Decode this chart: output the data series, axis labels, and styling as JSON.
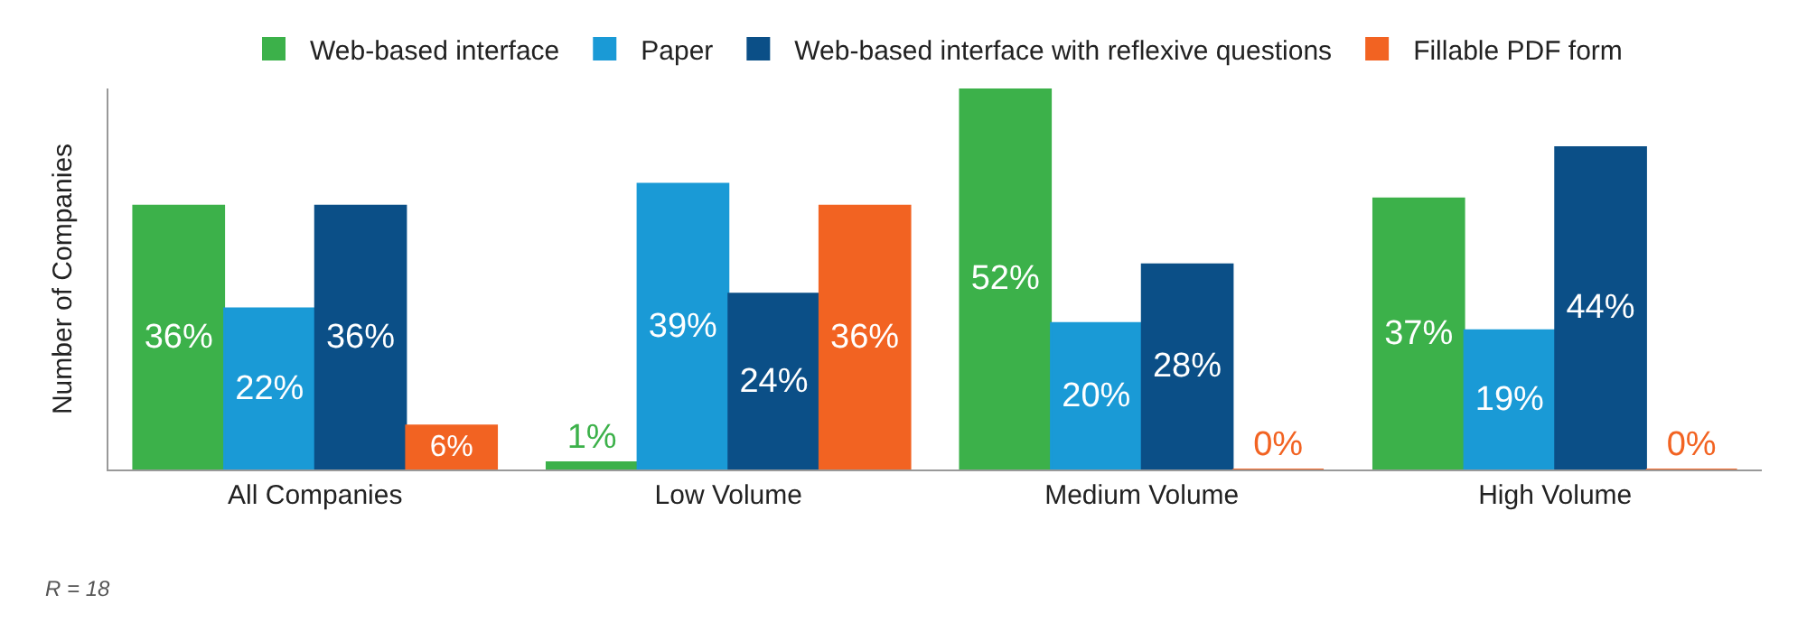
{
  "chart_data": {
    "type": "bar",
    "ylabel": "Number of Companies",
    "categories": [
      "All Companies",
      "Low Volume",
      "Medium Volume",
      "High Volume"
    ],
    "series": [
      {
        "name": "Web-based interface",
        "color": "#3cb14a",
        "values": [
          36,
          1,
          52,
          37
        ],
        "value_labels": [
          "36%",
          "1%",
          "52%",
          "37%"
        ]
      },
      {
        "name": "Paper",
        "color": "#1a9ad6",
        "values": [
          22,
          39,
          20,
          19
        ],
        "value_labels": [
          "22%",
          "39%",
          "20%",
          "19%"
        ]
      },
      {
        "name": "Web-based interface with reflexive questions",
        "color": "#0b4f87",
        "values": [
          36,
          24,
          28,
          44
        ],
        "value_labels": [
          "36%",
          "24%",
          "28%",
          "44%"
        ]
      },
      {
        "name": "Fillable PDF form",
        "color": "#f26322",
        "values": [
          6,
          36,
          0,
          0
        ],
        "value_labels": [
          "6%",
          "36%",
          "0%",
          "0%"
        ]
      }
    ],
    "annotations": [
      "R = 18"
    ],
    "legend": "top"
  }
}
